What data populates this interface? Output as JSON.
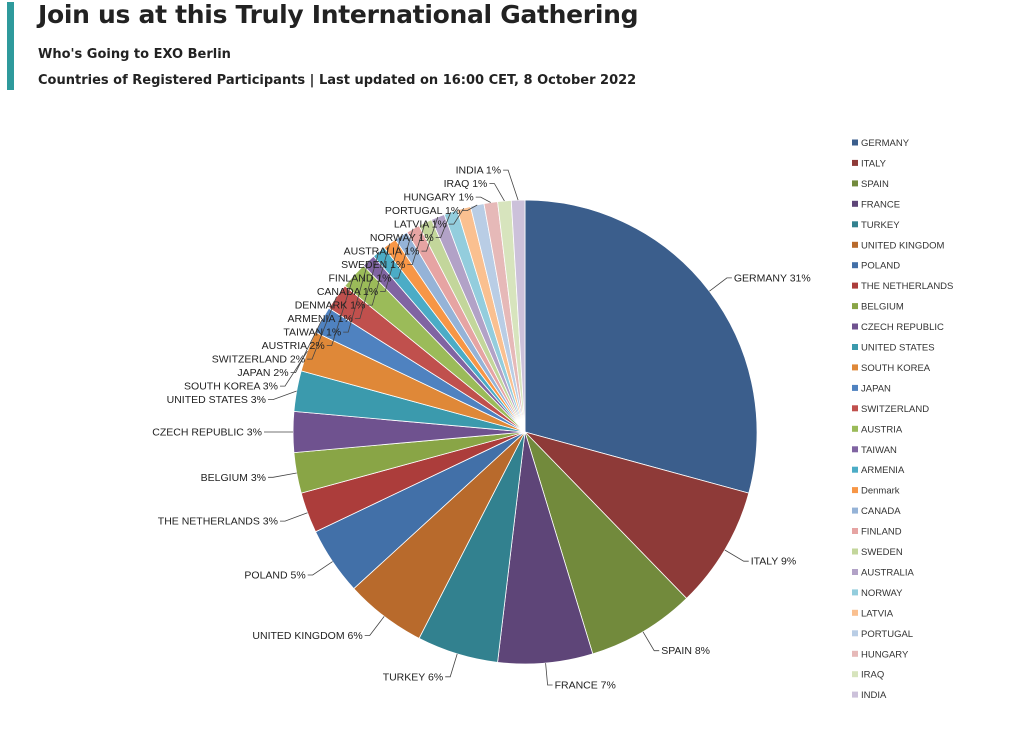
{
  "header": {
    "title": "Join us at this Truly International Gathering",
    "subtitle": "Who's Going to EXO Berlin",
    "subtitle2": "Countries of Registered Participants | Last updated on 16:00 CET, 8 October 2022",
    "accent_color": "#2e9a9c"
  },
  "chart_data": {
    "type": "pie",
    "start_angle": "12 o'clock",
    "direction": "clockwise",
    "legend_position": "right",
    "slices": [
      {
        "label": "GERMANY",
        "legend": "GERMANY",
        "value": 31,
        "value_label": "31%",
        "color": "#3b5e8c"
      },
      {
        "label": "ITALY",
        "legend": "ITALY",
        "value": 9,
        "value_label": "9%",
        "color": "#8e3a38"
      },
      {
        "label": "SPAIN",
        "legend": "SPAIN",
        "value": 8,
        "value_label": "8%",
        "color": "#728a3c"
      },
      {
        "label": "FRANCE",
        "legend": "FRANCE",
        "value": 7,
        "value_label": "7%",
        "color": "#5e4578"
      },
      {
        "label": "TURKEY",
        "legend": "TURKEY",
        "value": 6,
        "value_label": "6%",
        "color": "#32818f"
      },
      {
        "label": "UNITED KINGDOM",
        "legend": "UNITED KINGDOM",
        "value": 6,
        "value_label": "6%",
        "color": "#b86a2c"
      },
      {
        "label": "POLAND",
        "legend": "POLAND",
        "value": 5,
        "value_label": "5%",
        "color": "#4270a8"
      },
      {
        "label": "THE NETHERLANDS",
        "legend": "THE NETHERLANDS",
        "value": 3,
        "value_label": "3%",
        "color": "#ac3d3b"
      },
      {
        "label": "BELGIUM",
        "legend": "BELGIUM",
        "value": 3,
        "value_label": "3%",
        "color": "#89a546"
      },
      {
        "label": "CZECH REPUBLIC",
        "legend": "CZECH REPUBLIC",
        "value": 3,
        "value_label": "3%",
        "color": "#6f528f"
      },
      {
        "label": "UNITED STATES",
        "legend": "UNITED STATES",
        "value": 3,
        "value_label": "3%",
        "color": "#3b9aad"
      },
      {
        "label": "SOUTH KOREA",
        "legend": "SOUTH KOREA",
        "value": 3,
        "value_label": "3%",
        "color": "#df8838"
      },
      {
        "label": "JAPAN",
        "legend": "JAPAN",
        "value": 2,
        "value_label": "2%",
        "color": "#4f82c0"
      },
      {
        "label": "SWITZERLAND",
        "legend": "SWITZERLAND",
        "value": 2,
        "value_label": "2%",
        "color": "#c0504d"
      },
      {
        "label": "AUSTRIA",
        "legend": "AUSTRIA",
        "value": 2,
        "value_label": "2%",
        "color": "#9bbb59"
      },
      {
        "label": "TAIWAN",
        "legend": "TAIWAN",
        "value": 1,
        "value_label": "1%",
        "color": "#8064a2"
      },
      {
        "label": "ARMENIA",
        "legend": "ARMENIA",
        "value": 1,
        "value_label": "1%",
        "color": "#4bacc6"
      },
      {
        "label": "DENMARK",
        "legend": "Denmark",
        "value": 1,
        "value_label": "1%",
        "color": "#f79646"
      },
      {
        "label": "CANADA",
        "legend": "CANADA",
        "value": 1,
        "value_label": "1%",
        "color": "#95b3d7"
      },
      {
        "label": "FINLAND",
        "legend": "FINLAND",
        "value": 1,
        "value_label": "1%",
        "color": "#e6a4a3"
      },
      {
        "label": "SWEDEN",
        "legend": "SWEDEN",
        "value": 1,
        "value_label": "1%",
        "color": "#c3d69b"
      },
      {
        "label": "AUSTRALIA",
        "legend": "AUSTRALIA",
        "value": 1,
        "value_label": "1%",
        "color": "#b2a2c7"
      },
      {
        "label": "NORWAY",
        "legend": "NORWAY",
        "value": 1,
        "value_label": "1%",
        "color": "#93cddd"
      },
      {
        "label": "LATVIA",
        "legend": "LATVIA",
        "value": 1,
        "value_label": "1%",
        "color": "#fac090"
      },
      {
        "label": "PORTUGAL",
        "legend": "PORTUGAL",
        "value": 1,
        "value_label": "1%",
        "color": "#b9cde5"
      },
      {
        "label": "HUNGARY",
        "legend": "HUNGARY",
        "value": 1,
        "value_label": "1%",
        "color": "#e6b9b8"
      },
      {
        "label": "IRAQ",
        "legend": "IRAQ",
        "value": 1,
        "value_label": "1%",
        "color": "#d7e4bd"
      },
      {
        "label": "INDIA",
        "legend": "INDIA",
        "value": 1,
        "value_label": "1%",
        "color": "#ccc1da"
      }
    ]
  }
}
